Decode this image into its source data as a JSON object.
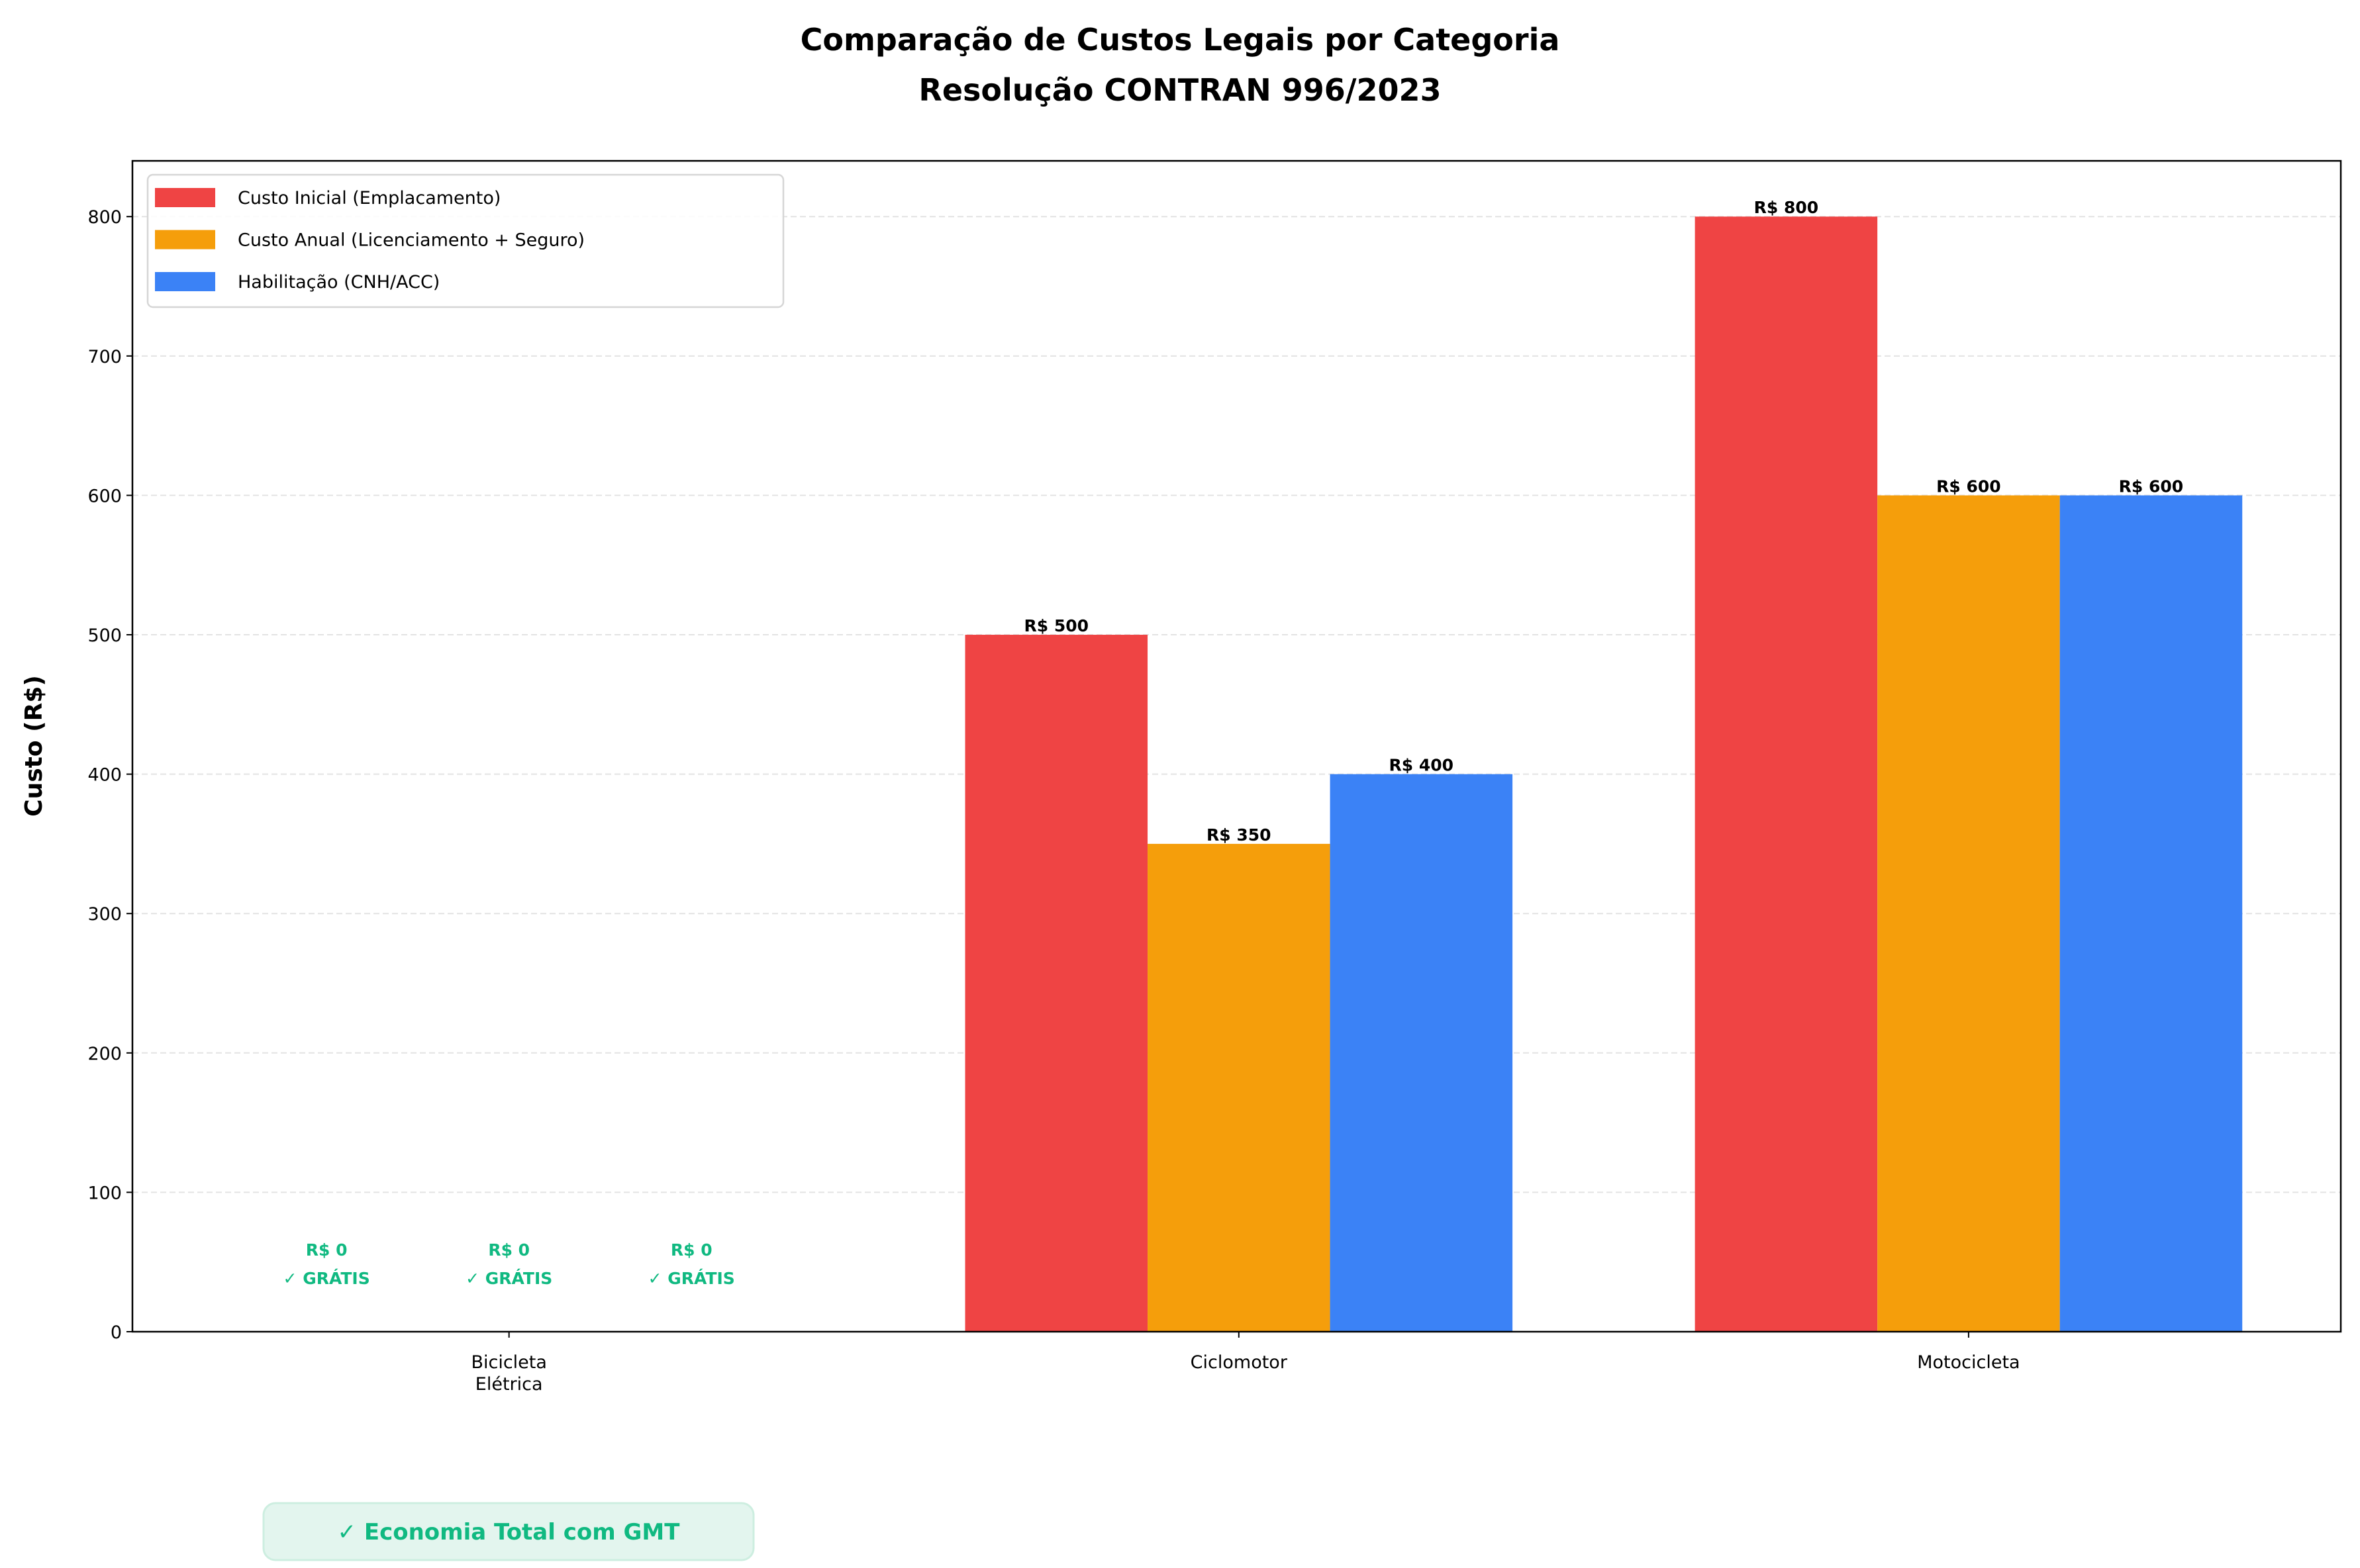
{
  "chart_data": {
    "type": "bar",
    "title": [
      "Comparação de Custos Legais por Categoria",
      "Resolução CONTRAN 996/2023"
    ],
    "xlabel": "",
    "ylabel": "Custo (R$)",
    "ylim": [
      0,
      840
    ],
    "yticks": [
      0,
      100,
      200,
      300,
      400,
      500,
      600,
      700,
      800
    ],
    "grid": "y-dashed",
    "legend_position": "top-left",
    "categories": [
      [
        "Bicicleta",
        "Elétrica"
      ],
      [
        "Ciclomotor"
      ],
      [
        "Motocicleta"
      ]
    ],
    "series": [
      {
        "name": "Custo Inicial (Emplacamento)",
        "color": "#ef4444",
        "values": [
          0,
          500,
          800
        ]
      },
      {
        "name": "Custo Anual (Licenciamento + Seguro)",
        "color": "#f59e0b",
        "values": [
          0,
          350,
          600
        ]
      },
      {
        "name": "Habilitação (CNH/ACC)",
        "color": "#3b82f6",
        "values": [
          0,
          400,
          600
        ]
      }
    ],
    "value_labels": [
      [
        "R$ 0\n✓ GRÁTIS",
        "R$ 500",
        "R$ 800"
      ],
      [
        "R$ 0\n✓ GRÁTIS",
        "R$ 350",
        "R$ 600"
      ],
      [
        "R$ 0\n✓ GRÁTIS",
        "R$ 400",
        "R$ 600"
      ]
    ],
    "free_color": "#10b981",
    "annotation": "✓ Economia Total com GMT"
  }
}
